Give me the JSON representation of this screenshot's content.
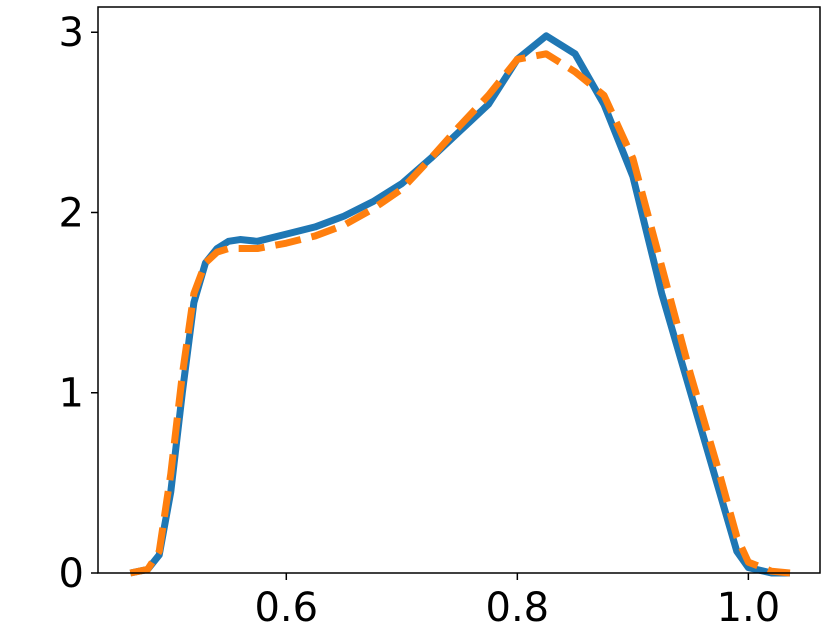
{
  "chart_data": {
    "type": "line",
    "x": [
      0.465,
      0.48,
      0.49,
      0.5,
      0.51,
      0.52,
      0.53,
      0.54,
      0.55,
      0.56,
      0.575,
      0.6,
      0.625,
      0.65,
      0.675,
      0.7,
      0.725,
      0.75,
      0.775,
      0.8,
      0.825,
      0.85,
      0.875,
      0.9,
      0.925,
      0.95,
      0.975,
      0.99,
      1.0,
      1.02,
      1.036
    ],
    "series": [
      {
        "color": "#1f77b4",
        "style": "solid",
        "values": [
          0,
          0.02,
          0.1,
          0.45,
          1.0,
          1.5,
          1.72,
          1.8,
          1.84,
          1.85,
          1.84,
          1.88,
          1.92,
          1.98,
          2.06,
          2.16,
          2.3,
          2.45,
          2.6,
          2.85,
          2.98,
          2.88,
          2.6,
          2.2,
          1.55,
          1.0,
          0.45,
          0.12,
          0.03,
          0,
          0
        ]
      },
      {
        "color": "#ff7f0e",
        "style": "dashed",
        "values": [
          0,
          0.02,
          0.12,
          0.55,
          1.1,
          1.55,
          1.72,
          1.78,
          1.8,
          1.8,
          1.8,
          1.83,
          1.87,
          1.93,
          2.02,
          2.13,
          2.3,
          2.48,
          2.65,
          2.85,
          2.88,
          2.78,
          2.65,
          2.3,
          1.7,
          1.1,
          0.55,
          0.2,
          0.06,
          0.01,
          0
        ]
      }
    ],
    "xlim": [
      0.437,
      1.062
    ],
    "ylim": [
      0,
      3.14
    ],
    "xticks": [
      0.6,
      0.8,
      {
        "value": 1,
        "label": "1.0"
      }
    ],
    "yticks": [
      0,
      1,
      2,
      3
    ]
  }
}
